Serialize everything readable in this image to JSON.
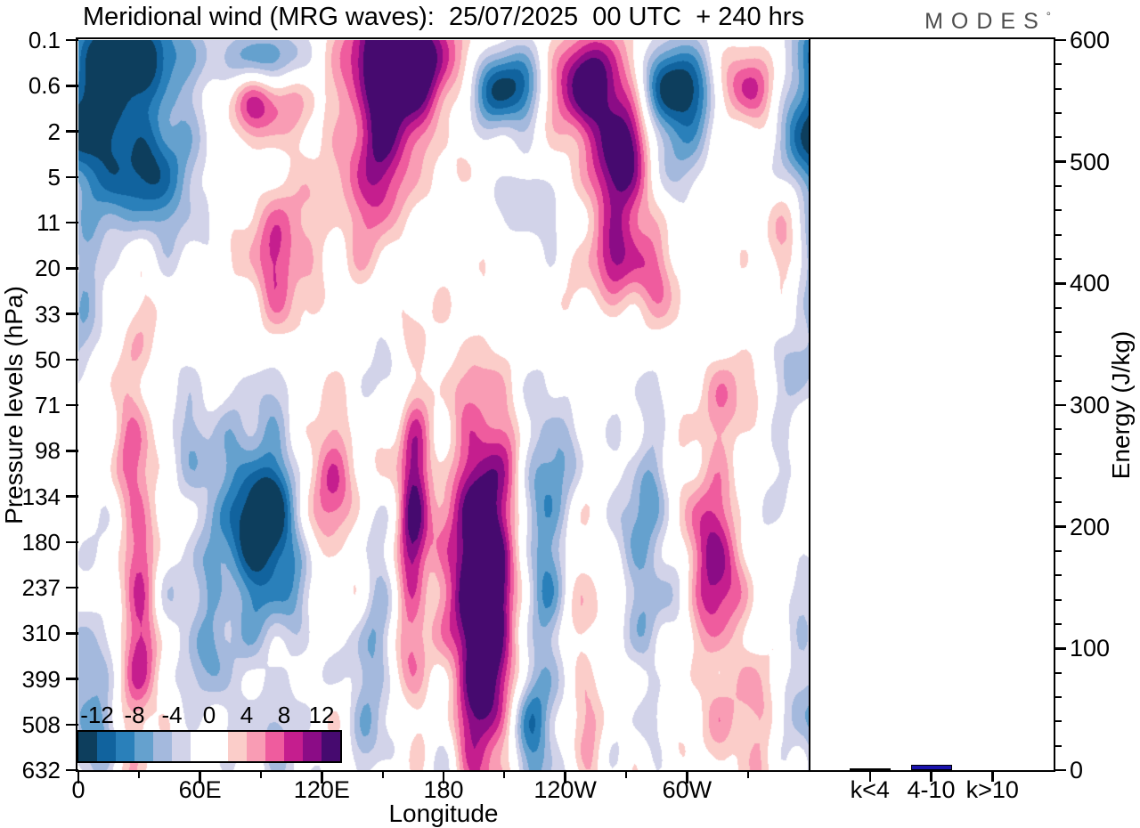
{
  "title": "Meridional wind (MRG waves):  25/07/2025  00 UTC  + 240 hrs",
  "logo": {
    "text": "MODES",
    "mark": "°"
  },
  "pressure_axis": {
    "label": "Pressure levels (hPa)",
    "ticks": [
      "0.1",
      "0.6",
      "2",
      "5",
      "11",
      "20",
      "33",
      "50",
      "71",
      "98",
      "134",
      "180",
      "237",
      "310",
      "399",
      "508",
      "632"
    ]
  },
  "longitude_axis": {
    "label": "Longitude",
    "major": [
      {
        "label": "0",
        "deg": 0
      },
      {
        "label": "60E",
        "deg": 60
      },
      {
        "label": "120E",
        "deg": 120
      },
      {
        "label": "180",
        "deg": 180
      },
      {
        "label": "120W",
        "deg": 240
      },
      {
        "label": "60W",
        "deg": 300
      }
    ],
    "minor_degs": [
      30,
      90,
      150,
      210,
      270,
      330
    ]
  },
  "energy_axis": {
    "label": "Energy (J/kg)",
    "major_ticks": [
      0,
      100,
      200,
      300,
      400,
      500,
      600
    ],
    "minor_step": 20,
    "max": 600
  },
  "colorbar": {
    "tick_labels": [
      "-12",
      "-8",
      "-4",
      "0",
      "4",
      "8",
      "12"
    ],
    "levels": [
      -14,
      -12,
      -10,
      -8,
      -6,
      -4,
      -2,
      0,
      2,
      4,
      6,
      8,
      10,
      12,
      14
    ],
    "colors": [
      "#0d3e5d",
      "#11639e",
      "#2a80ba",
      "#65a1ce",
      "#a4b9dd",
      "#d2d3e9",
      "#ffffff",
      "#ffffff",
      "#fbcdc9",
      "#f99cb4",
      "#ef5c9e",
      "#c51e8e",
      "#8b0c86",
      "#460a6f"
    ]
  },
  "energy_bars": {
    "categories": [
      "k<4",
      "4-10",
      "k>10"
    ],
    "values": [
      1.5,
      4.4,
      0
    ],
    "colors": [
      "#000000",
      "#1a13ad",
      "#000000"
    ]
  },
  "chart_data": [
    {
      "type": "heatmap",
      "subtype": "filled-contour",
      "title": "Meridional wind (MRG waves):  25/07/2025  00 UTC  + 240 hrs",
      "xlabel": "Longitude",
      "ylabel": "Pressure levels (hPa)",
      "x_range_deg": [
        0,
        360
      ],
      "x_tick_labels": [
        "0",
        "60E",
        "120E",
        "180",
        "120W",
        "60W"
      ],
      "x_tick_degs": [
        0,
        60,
        120,
        180,
        240,
        300
      ],
      "y_tick_labels": [
        "0.1",
        "0.6",
        "2",
        "5",
        "11",
        "20",
        "33",
        "50",
        "71",
        "98",
        "134",
        "180",
        "237",
        "310",
        "399",
        "508",
        "632"
      ],
      "y_axis_note": "pressure model levels, equally spaced, 0.1 hPa (top) to 632 hPa (bottom)",
      "contour_levels": [
        -14,
        -12,
        -10,
        -8,
        -6,
        -4,
        -2,
        0,
        2,
        4,
        6,
        8,
        10,
        12,
        14
      ],
      "contour_colors": [
        "#0d3e5d",
        "#11639e",
        "#2a80ba",
        "#65a1ce",
        "#a4b9dd",
        "#d2d3e9",
        "#ffffff",
        "#ffffff",
        "#fbcdc9",
        "#f99cb4",
        "#ef5c9e",
        "#c51e8e",
        "#8b0c86",
        "#460a6f"
      ],
      "colorbar_labels": [
        "-12",
        "-8",
        "-4",
        "0",
        "4",
        "8",
        "12"
      ],
      "legend_position": "inside lower-left",
      "grid": false,
      "field_blobs": [
        [
          20,
          0.02,
          22,
          0.05,
          -15
        ],
        [
          8,
          0.12,
          12,
          0.08,
          -5
        ],
        [
          90,
          0.025,
          16,
          0.03,
          -9
        ],
        [
          87,
          0.085,
          13,
          0.035,
          9
        ],
        [
          161,
          0.02,
          17,
          0.05,
          16
        ],
        [
          150,
          0.08,
          26,
          0.1,
          4
        ],
        [
          152,
          0.13,
          10,
          0.08,
          7
        ],
        [
          145,
          0.22,
          9,
          0.07,
          5
        ],
        [
          212,
          0.065,
          13,
          0.04,
          -14
        ],
        [
          251,
          0.06,
          14,
          0.05,
          15
        ],
        [
          268,
          0.16,
          9,
          0.055,
          13
        ],
        [
          265,
          0.26,
          16,
          0.08,
          4
        ],
        [
          295,
          0.065,
          12,
          0.04,
          -15
        ],
        [
          297,
          0.155,
          9,
          0.05,
          -6
        ],
        [
          329,
          0.065,
          10,
          0.035,
          10
        ],
        [
          352,
          0.03,
          10,
          0.04,
          5
        ],
        [
          356,
          0.13,
          8,
          0.05,
          -7
        ],
        [
          350,
          0.24,
          7,
          0.07,
          5
        ],
        [
          30,
          0.16,
          22,
          0.07,
          -9
        ],
        [
          37,
          0.21,
          12,
          0.05,
          -4
        ],
        [
          5,
          0.3,
          9,
          0.06,
          -4
        ],
        [
          102,
          0.27,
          14,
          0.06,
          6
        ],
        [
          97,
          0.34,
          8,
          0.05,
          4
        ],
        [
          223,
          0.235,
          18,
          0.035,
          -4
        ],
        [
          263,
          0.3,
          9,
          0.04,
          5
        ],
        [
          284,
          0.33,
          10,
          0.04,
          5
        ],
        [
          352,
          0.44,
          7,
          0.045,
          -4
        ],
        [
          148,
          0.46,
          8,
          0.04,
          -3
        ],
        [
          155,
          0.27,
          7,
          0.035,
          -3
        ],
        [
          325,
          0.5,
          12,
          0.05,
          4
        ],
        [
          340,
          0.57,
          10,
          0.05,
          -4
        ],
        [
          2,
          0.4,
          5,
          0.05,
          -3
        ],
        [
          28,
          0.62,
          7,
          0.2,
          6
        ],
        [
          30,
          0.85,
          6,
          0.12,
          5
        ],
        [
          92,
          0.65,
          16,
          0.1,
          -9
        ],
        [
          94,
          0.655,
          8,
          0.05,
          -5
        ],
        [
          80,
          0.73,
          20,
          0.14,
          -4
        ],
        [
          120,
          0.57,
          10,
          0.06,
          5
        ],
        [
          124,
          0.63,
          10,
          0.06,
          6
        ],
        [
          165,
          0.64,
          5,
          0.1,
          9
        ],
        [
          165,
          0.76,
          6,
          0.22,
          4
        ],
        [
          150,
          0.78,
          6,
          0.1,
          -3
        ],
        [
          143,
          0.89,
          6,
          0.1,
          -5
        ],
        [
          180,
          0.96,
          10,
          0.06,
          -4
        ],
        [
          200,
          0.74,
          10,
          0.13,
          15
        ],
        [
          200,
          0.74,
          17,
          0.21,
          6
        ],
        [
          197,
          0.94,
          7,
          0.1,
          5
        ],
        [
          227,
          0.72,
          9,
          0.14,
          -7
        ],
        [
          225,
          0.95,
          8,
          0.08,
          -8
        ],
        [
          234,
          0.6,
          8,
          0.08,
          -5
        ],
        [
          250,
          0.85,
          6,
          0.15,
          4
        ],
        [
          279,
          0.67,
          10,
          0.13,
          -5
        ],
        [
          282,
          0.62,
          5,
          0.05,
          -3
        ],
        [
          281,
          0.82,
          5,
          0.06,
          -3
        ],
        [
          315,
          0.72,
          7,
          0.06,
          8
        ],
        [
          310,
          0.61,
          12,
          0.08,
          4
        ],
        [
          313,
          0.82,
          8,
          0.1,
          4
        ],
        [
          332,
          0.93,
          9,
          0.07,
          5
        ],
        [
          354,
          0.86,
          6,
          0.07,
          -4
        ],
        [
          5,
          0.95,
          7,
          0.05,
          -7
        ],
        [
          12,
          0.8,
          6,
          0.1,
          -4
        ],
        [
          55,
          0.52,
          9,
          0.06,
          -3
        ],
        [
          60,
          0.84,
          8,
          0.1,
          -3
        ],
        [
          104,
          0.97,
          8,
          0.05,
          -4
        ]
      ],
      "noise_terms": [
        [
          1.15,
          0.1,
          9.0,
          0.0,
          33,
          1.7
        ],
        [
          0.85,
          0.23,
          0.0,
          4.2,
          55,
          0.6
        ],
        [
          1.0,
          0.3,
          0.0,
          1.0,
          14,
          0.3
        ]
      ],
      "noise_weight": [
        0.8,
        0.55
      ]
    },
    {
      "type": "bar",
      "categories": [
        "k<4",
        "4-10",
        "k>10"
      ],
      "values": [
        1.5,
        4.4,
        0
      ],
      "title": "",
      "xlabel": "",
      "ylabel": "Energy (J/kg)",
      "ylim": [
        0,
        600
      ],
      "y_major_ticks": [
        0,
        100,
        200,
        300,
        400,
        500,
        600
      ],
      "bar_colors": [
        "#000000",
        "#1a13ad",
        "#000000"
      ],
      "legend_position": "none",
      "grid": false
    }
  ]
}
